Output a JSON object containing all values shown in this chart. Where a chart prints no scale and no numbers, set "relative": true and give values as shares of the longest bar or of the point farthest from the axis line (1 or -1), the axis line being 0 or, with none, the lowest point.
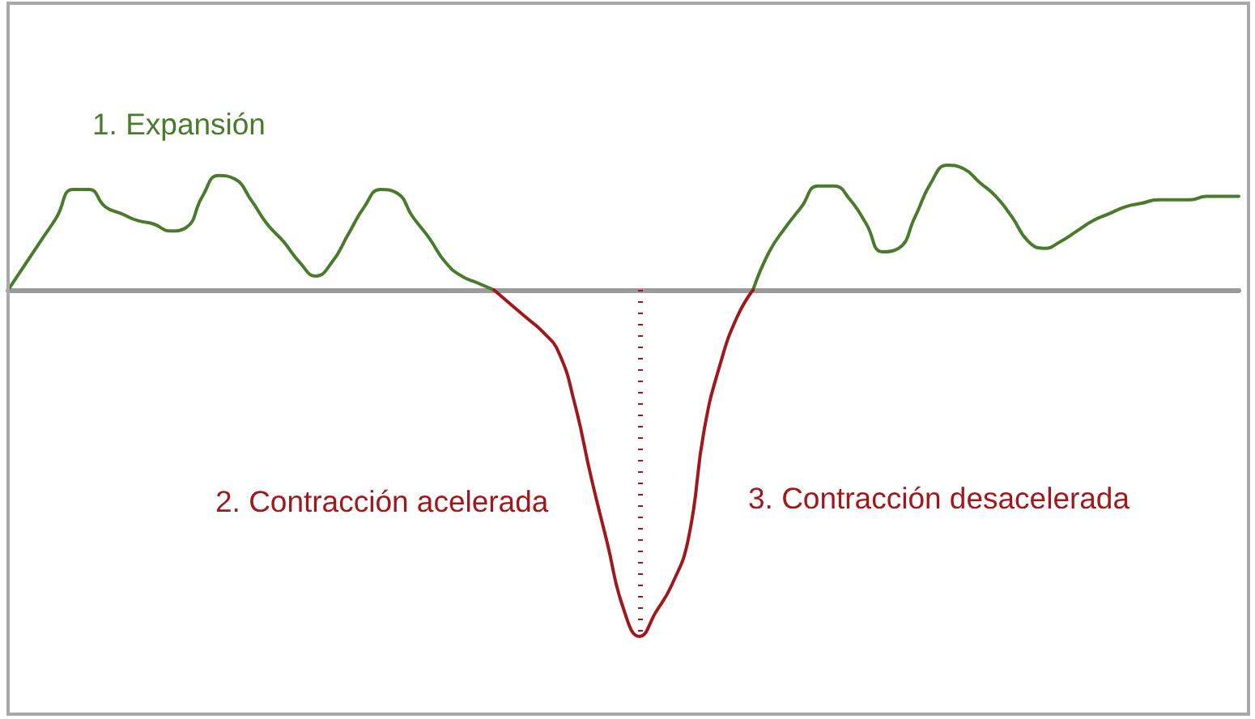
{
  "chart_data": {
    "type": "line",
    "relative": true,
    "categories": [
      null,
      null,
      null,
      null,
      null,
      null,
      null,
      null,
      null,
      null,
      null,
      null,
      null,
      null,
      null,
      null,
      null,
      null,
      null,
      null,
      null,
      null,
      null,
      null,
      null,
      null,
      null,
      null,
      null,
      null,
      null,
      null,
      null,
      null,
      null,
      null,
      null,
      null,
      null,
      null,
      null,
      null,
      null,
      null,
      null,
      null,
      null,
      null,
      null,
      null,
      null,
      null,
      null,
      null,
      null,
      null,
      null,
      null,
      null,
      null,
      null,
      null,
      null,
      null,
      null,
      null,
      null,
      null,
      null,
      null,
      null,
      null,
      null,
      null,
      null,
      null,
      null
    ],
    "series": [
      {
        "color": "#4a7b2c",
        "values": [
          0,
          0.07,
          0.14,
          0.21,
          0.29,
          0.29,
          0.24,
          0.22,
          0.2,
          0.19,
          0.17,
          0.18,
          0.27,
          0.33,
          0.32,
          0.26,
          0.19,
          0.14,
          0.08,
          0.04,
          0.08,
          0.16,
          0.24,
          0.29,
          0.28,
          0.21,
          0.15,
          0.08,
          0.04,
          0.02,
          0,
          null,
          null,
          null,
          null,
          null,
          null,
          null,
          null,
          null,
          null,
          null,
          null,
          null,
          null,
          null,
          0,
          0.11,
          0.18,
          0.24,
          0.3,
          0.3,
          0.26,
          0.19,
          0.11,
          0.12,
          0.21,
          0.31,
          0.36,
          0.35,
          0.31,
          0.27,
          0.21,
          0.14,
          0.12,
          0.14,
          0.17,
          0.2,
          0.22,
          0.24,
          0.25,
          0.26,
          0.26,
          0.26,
          0.27,
          0.27,
          0.27
        ]
      },
      {
        "color": "#a0181b",
        "values": [
          null,
          null,
          null,
          null,
          null,
          null,
          null,
          null,
          null,
          null,
          null,
          null,
          null,
          null,
          null,
          null,
          null,
          null,
          null,
          null,
          null,
          null,
          null,
          null,
          null,
          null,
          null,
          null,
          null,
          null,
          0,
          -0.04,
          -0.08,
          -0.12,
          -0.18,
          -0.33,
          -0.54,
          -0.73,
          -0.92,
          -1,
          -0.93,
          -0.85,
          -0.72,
          -0.4,
          -0.21,
          -0.08,
          0,
          null,
          null,
          null,
          null,
          null,
          null,
          null,
          null,
          null,
          null,
          null,
          null,
          null,
          null,
          null,
          null,
          null,
          null,
          null,
          null,
          null,
          null,
          null,
          null,
          null,
          null,
          null,
          null,
          null,
          null
        ]
      }
    ],
    "annotations": [
      "1. Expansión",
      "2. Contracción acelerada",
      "3. Contracción desacelerada"
    ]
  }
}
